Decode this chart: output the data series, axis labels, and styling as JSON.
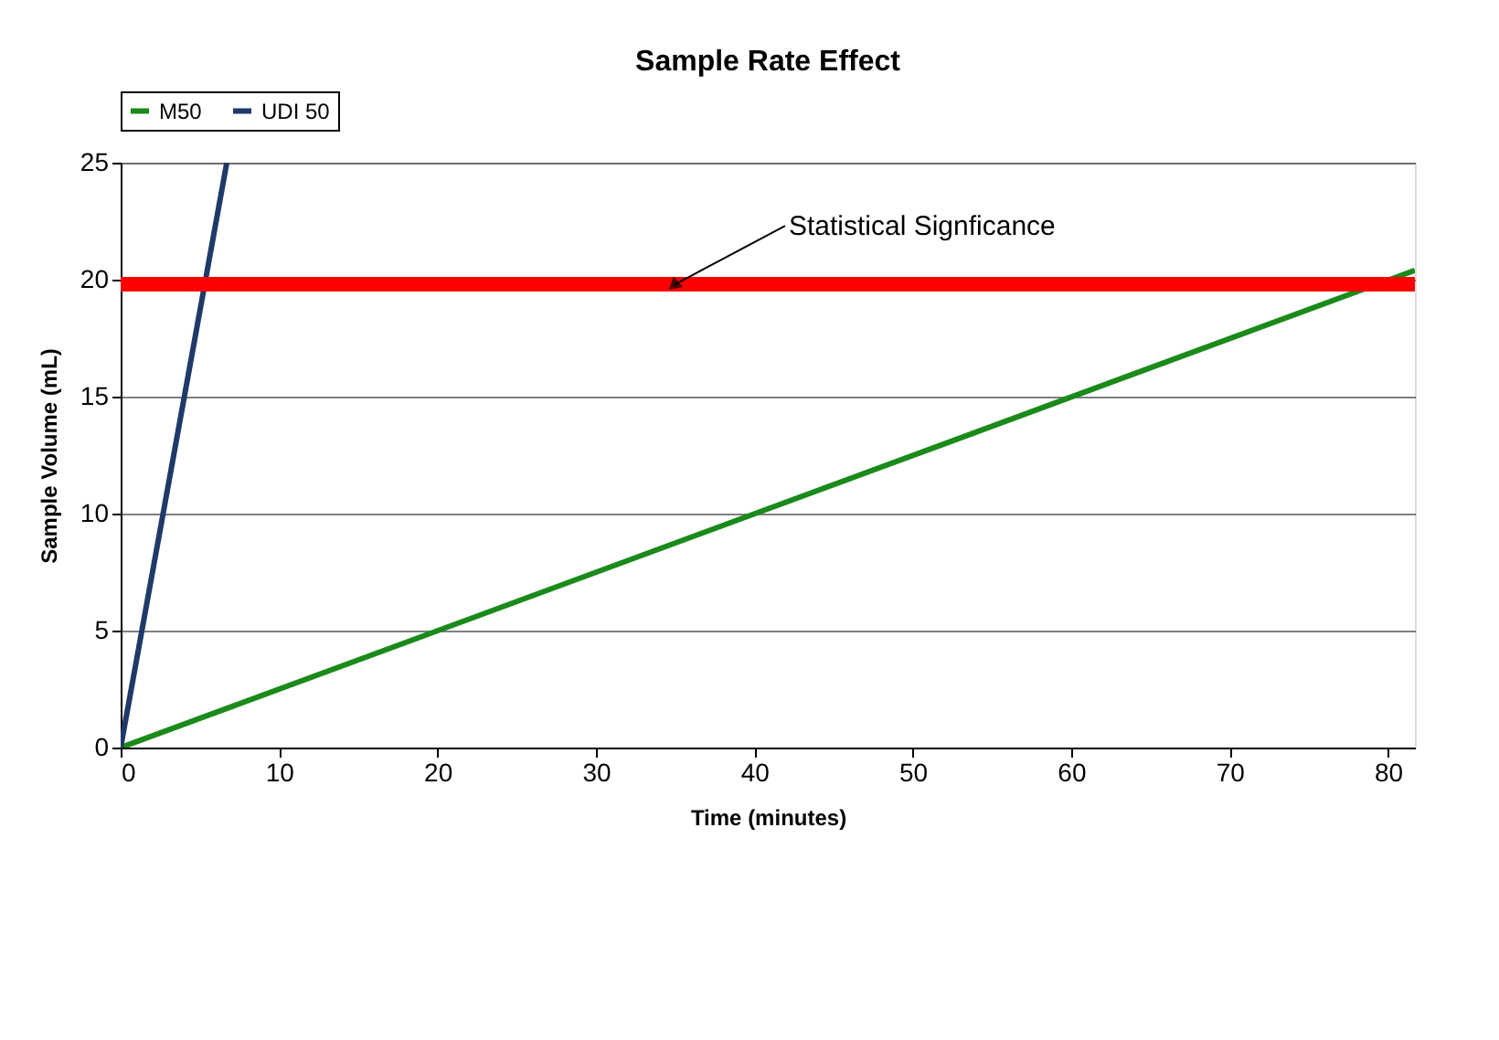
{
  "chart_data": {
    "type": "line",
    "title": "Sample Rate Effect",
    "xlabel": "Time (minutes)",
    "ylabel": "Sample Volume (mL)",
    "series": [
      {
        "name": "M50",
        "color": "#1a8a1a",
        "x": [
          0,
          81.7
        ],
        "values": [
          0,
          20.4
        ]
      },
      {
        "name": "UDI 50",
        "color": "#1f3a68",
        "x": [
          0,
          6.7
        ],
        "values": [
          0,
          25
        ]
      }
    ],
    "xlim": [
      0,
      81.7
    ],
    "xticks": [
      0,
      10,
      20,
      30,
      40,
      50,
      60,
      70,
      80
    ],
    "ylim": [
      0,
      25
    ],
    "yticks": [
      0,
      5,
      10,
      15,
      20,
      25
    ],
    "ref_lines": [
      {
        "axis": "y",
        "value": 19.8,
        "color": "#ff0000"
      }
    ],
    "annotations": [
      {
        "text": "Statistical Signficance",
        "x": 35,
        "y": 19.8
      }
    ],
    "grid": "y",
    "legend": "top",
    "marker": "none",
    "line_style": "solid"
  }
}
